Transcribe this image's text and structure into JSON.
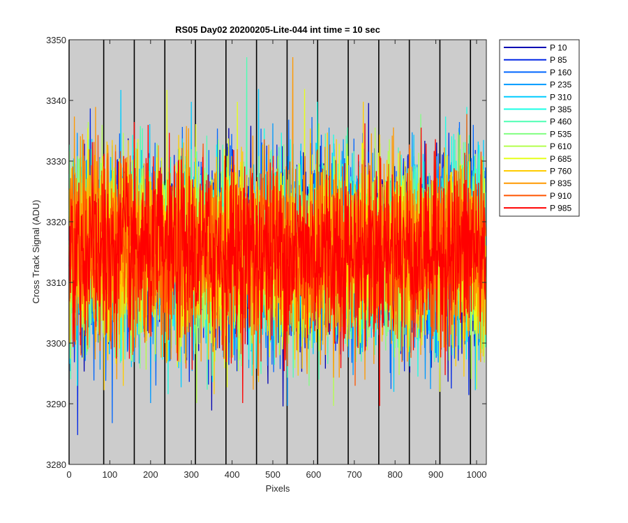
{
  "chart_data": {
    "type": "line",
    "title": "RS05 Day02 20200205-Lite-044 int time = 10 sec",
    "xlabel": "Pixels",
    "ylabel": "Cross Track Signal (ADU)",
    "xlim": [
      0,
      1024
    ],
    "ylim": [
      3280,
      3350
    ],
    "xticks": [
      0,
      100,
      200,
      300,
      400,
      500,
      600,
      700,
      800,
      900,
      1000
    ],
    "yticks": [
      3280,
      3290,
      3300,
      3310,
      3320,
      3330,
      3340,
      3350
    ],
    "background": "#cccccc",
    "vertical_markers": [
      0,
      85,
      160,
      235,
      310,
      385,
      460,
      535,
      610,
      685,
      760,
      835,
      910,
      985
    ],
    "noise_model": {
      "mean": 3315,
      "std": 7.5,
      "points_per_series": 1024
    },
    "legend_position": "outside-top-right",
    "series": [
      {
        "name": "P 10",
        "color": "#0000b3"
      },
      {
        "name": "P 85",
        "color": "#0026e6"
      },
      {
        "name": "P 160",
        "color": "#0066ff"
      },
      {
        "name": "P 235",
        "color": "#0099ff"
      },
      {
        "name": "P 310",
        "color": "#00ccff"
      },
      {
        "name": "P 385",
        "color": "#19ffe6"
      },
      {
        "name": "P 460",
        "color": "#4dffb3"
      },
      {
        "name": "P 535",
        "color": "#80ff80"
      },
      {
        "name": "P 610",
        "color": "#b3ff4d"
      },
      {
        "name": "P 685",
        "color": "#e6ff19"
      },
      {
        "name": "P 760",
        "color": "#ffcc00"
      },
      {
        "name": "P 835",
        "color": "#ff9900"
      },
      {
        "name": "P 910",
        "color": "#ff5500"
      },
      {
        "name": "P 985",
        "color": "#ff0000"
      }
    ]
  }
}
